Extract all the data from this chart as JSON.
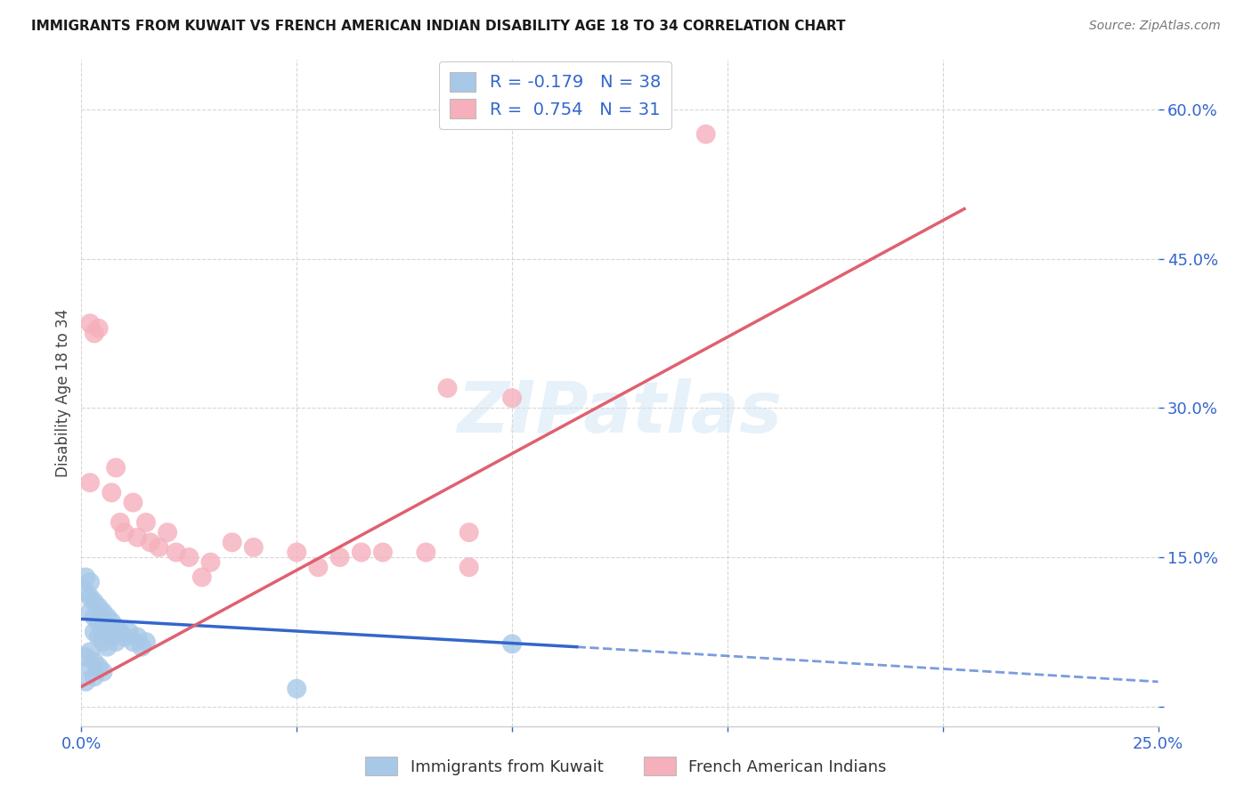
{
  "title": "IMMIGRANTS FROM KUWAIT VS FRENCH AMERICAN INDIAN DISABILITY AGE 18 TO 34 CORRELATION CHART",
  "source": "Source: ZipAtlas.com",
  "ylabel_label": "Disability Age 18 to 34",
  "xlim": [
    0.0,
    0.25
  ],
  "ylim": [
    -0.02,
    0.65
  ],
  "x_ticks": [
    0.0,
    0.05,
    0.1,
    0.15,
    0.2,
    0.25
  ],
  "y_ticks": [
    0.0,
    0.15,
    0.3,
    0.45,
    0.6
  ],
  "blue_R": -0.179,
  "blue_N": 38,
  "pink_R": 0.754,
  "pink_N": 31,
  "blue_color": "#a8c8e8",
  "pink_color": "#f5b0bc",
  "blue_line_color": "#3366cc",
  "pink_line_color": "#e06070",
  "blue_line_solid": [
    [
      0.0,
      0.088
    ],
    [
      0.115,
      0.06
    ]
  ],
  "blue_line_dash": [
    [
      0.115,
      0.06
    ],
    [
      0.25,
      0.025
    ]
  ],
  "pink_line_solid": [
    [
      0.0,
      0.02
    ],
    [
      0.205,
      0.5
    ]
  ],
  "blue_scatter": [
    [
      0.001,
      0.13
    ],
    [
      0.001,
      0.115
    ],
    [
      0.002,
      0.125
    ],
    [
      0.002,
      0.11
    ],
    [
      0.002,
      0.095
    ],
    [
      0.003,
      0.105
    ],
    [
      0.003,
      0.09
    ],
    [
      0.003,
      0.075
    ],
    [
      0.004,
      0.1
    ],
    [
      0.004,
      0.085
    ],
    [
      0.004,
      0.07
    ],
    [
      0.005,
      0.095
    ],
    [
      0.005,
      0.08
    ],
    [
      0.005,
      0.065
    ],
    [
      0.006,
      0.09
    ],
    [
      0.006,
      0.075
    ],
    [
      0.006,
      0.06
    ],
    [
      0.007,
      0.085
    ],
    [
      0.007,
      0.07
    ],
    [
      0.008,
      0.08
    ],
    [
      0.008,
      0.065
    ],
    [
      0.009,
      0.075
    ],
    [
      0.01,
      0.07
    ],
    [
      0.011,
      0.075
    ],
    [
      0.012,
      0.065
    ],
    [
      0.013,
      0.07
    ],
    [
      0.014,
      0.06
    ],
    [
      0.015,
      0.065
    ],
    [
      0.001,
      0.05
    ],
    [
      0.002,
      0.055
    ],
    [
      0.003,
      0.045
    ],
    [
      0.004,
      0.04
    ],
    [
      0.005,
      0.035
    ],
    [
      0.002,
      0.04
    ],
    [
      0.003,
      0.03
    ],
    [
      0.001,
      0.025
    ],
    [
      0.1,
      0.063
    ],
    [
      0.05,
      0.018
    ]
  ],
  "pink_scatter": [
    [
      0.002,
      0.385
    ],
    [
      0.003,
      0.375
    ],
    [
      0.004,
      0.38
    ],
    [
      0.007,
      0.215
    ],
    [
      0.008,
      0.24
    ],
    [
      0.009,
      0.185
    ],
    [
      0.01,
      0.175
    ],
    [
      0.012,
      0.205
    ],
    [
      0.013,
      0.17
    ],
    [
      0.015,
      0.185
    ],
    [
      0.016,
      0.165
    ],
    [
      0.018,
      0.16
    ],
    [
      0.02,
      0.175
    ],
    [
      0.022,
      0.155
    ],
    [
      0.025,
      0.15
    ],
    [
      0.028,
      0.13
    ],
    [
      0.03,
      0.145
    ],
    [
      0.035,
      0.165
    ],
    [
      0.04,
      0.16
    ],
    [
      0.05,
      0.155
    ],
    [
      0.055,
      0.14
    ],
    [
      0.06,
      0.15
    ],
    [
      0.065,
      0.155
    ],
    [
      0.07,
      0.155
    ],
    [
      0.08,
      0.155
    ],
    [
      0.09,
      0.175
    ],
    [
      0.09,
      0.14
    ],
    [
      0.1,
      0.31
    ],
    [
      0.085,
      0.32
    ],
    [
      0.145,
      0.575
    ],
    [
      0.002,
      0.225
    ]
  ],
  "watermark": "ZIPatlas",
  "legend_label_blue": "Immigrants from Kuwait",
  "legend_label_pink": "French American Indians"
}
